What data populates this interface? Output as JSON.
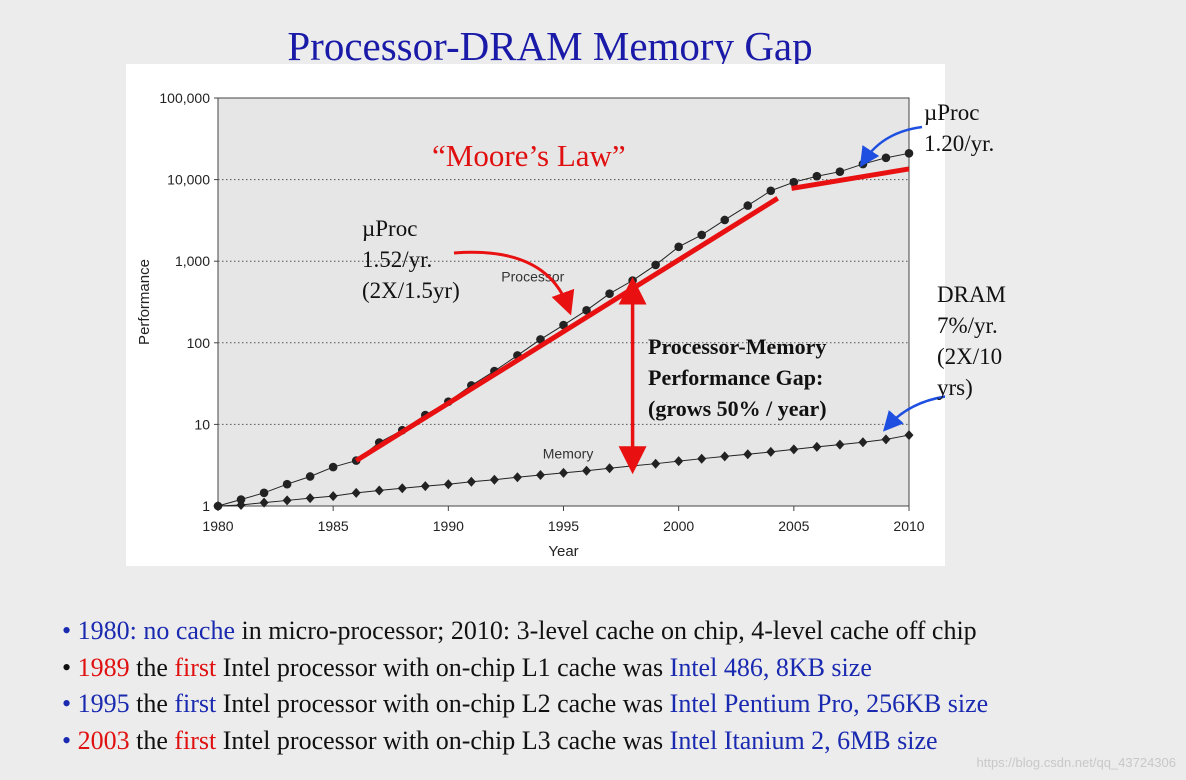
{
  "title": "Processor-DRAM Memory Gap",
  "chart_data": {
    "type": "line",
    "xlabel": "Year",
    "ylabel": "Performance",
    "xlim": [
      1980,
      2010
    ],
    "ylim": [
      1,
      100000
    ],
    "yscale": "log",
    "x_ticks": [
      1980,
      1985,
      1990,
      1995,
      2000,
      2005,
      2010
    ],
    "y_ticks": [
      1,
      10,
      100,
      1000,
      10000,
      100000
    ],
    "y_tick_labels": [
      "1",
      "10",
      "100",
      "1,000",
      "10,000",
      "100,000"
    ],
    "grid": "horizontal dotted",
    "series": [
      {
        "name": "Processor",
        "marker": "circle",
        "x": [
          1980,
          1981,
          1982,
          1983,
          1984,
          1985,
          1986,
          1987,
          1988,
          1989,
          1990,
          1991,
          1992,
          1993,
          1994,
          1995,
          1996,
          1997,
          1998,
          1999,
          2000,
          2001,
          2002,
          2003,
          2004,
          2005,
          2006,
          2007,
          2008,
          2009,
          2010
        ],
        "values": [
          1,
          1.2,
          1.45,
          1.85,
          2.3,
          3,
          3.6,
          6,
          8.5,
          13,
          19,
          30,
          45,
          70,
          110,
          165,
          250,
          400,
          580,
          900,
          1500,
          2100,
          3200,
          4800,
          7300,
          9300,
          11000,
          12500,
          15500,
          18500,
          21000
        ]
      },
      {
        "name": "Memory",
        "marker": "diamond",
        "x": [
          1980,
          1981,
          1982,
          1983,
          1984,
          1985,
          1986,
          1987,
          1988,
          1989,
          1990,
          1991,
          1992,
          1993,
          1994,
          1995,
          1996,
          1997,
          1998,
          1999,
          2000,
          2001,
          2002,
          2003,
          2004,
          2005,
          2006,
          2007,
          2008,
          2009,
          2010
        ],
        "values": [
          1,
          1.03,
          1.1,
          1.17,
          1.25,
          1.32,
          1.45,
          1.55,
          1.65,
          1.75,
          1.85,
          1.98,
          2.1,
          2.25,
          2.4,
          2.55,
          2.7,
          2.9,
          3.1,
          3.3,
          3.55,
          3.8,
          4.05,
          4.3,
          4.6,
          4.95,
          5.3,
          5.65,
          6.05,
          6.55,
          7.4
        ]
      }
    ],
    "annotations": {
      "moores_law": "“Moore’s Law”",
      "proc_early": [
        "µProc",
        "1.52/yr.",
        "(2X/1.5yr)"
      ],
      "proc_late": [
        "µProc",
        "1.20/yr."
      ],
      "dram": [
        "DRAM",
        "7%/yr.",
        "(2X/10",
        "yrs)"
      ],
      "gap": [
        "Processor-Memory",
        "Performance Gap:",
        "(grows 50% / year)"
      ]
    },
    "colors": {
      "trend": "#e81010",
      "arrow": "#1e4fe0",
      "series": "#222222",
      "plot_bg": "#e6e6e6"
    }
  },
  "bullets": [
    [
      {
        "text": "• 1980: no cache",
        "color": "blue"
      },
      {
        "text": " in micro-processor; 2010: 3-level cache on chip, 4-level cache off chip",
        "color": "black"
      }
    ],
    [
      {
        "text": "• ",
        "color": "black"
      },
      {
        "text": "1989",
        "color": "red"
      },
      {
        "text": " the ",
        "color": "black"
      },
      {
        "text": "first",
        "color": "red"
      },
      {
        "text": " Intel processor with on-chip L1 cache was ",
        "color": "black"
      },
      {
        "text": "Intel 486, 8KB size",
        "color": "blue"
      }
    ],
    [
      {
        "text": "• 1995",
        "color": "blue"
      },
      {
        "text": " the ",
        "color": "black"
      },
      {
        "text": "first",
        "color": "blue"
      },
      {
        "text": " Intel processor with on-chip L2 cache was ",
        "color": "black"
      },
      {
        "text": "Intel Pentium Pro, 256KB size",
        "color": "blue"
      }
    ],
    [
      {
        "text": "• ",
        "color": "blue"
      },
      {
        "text": "2003",
        "color": "red"
      },
      {
        "text": " the ",
        "color": "black"
      },
      {
        "text": "first",
        "color": "red"
      },
      {
        "text": " Intel processor with on-chip L3 cache was ",
        "color": "black"
      },
      {
        "text": "Intel Itanium 2, 6MB size",
        "color": "blue"
      }
    ]
  ],
  "watermark": "https://blog.csdn.net/qq_43724306"
}
